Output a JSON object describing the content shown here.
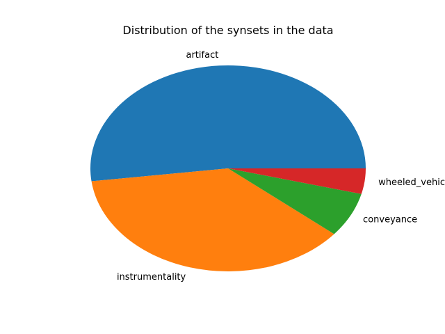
{
  "chart_data": {
    "type": "pie",
    "title": "Distribution of the synsets in the data",
    "categories": [
      "artifact",
      "instrumentality",
      "conveyance",
      "wheeled_vehicle"
    ],
    "values": [
      52,
      37,
      7,
      4
    ],
    "colors": [
      "#1f77b4",
      "#ff7f0e",
      "#2ca02c",
      "#d62728"
    ],
    "start_angle_deg": 0,
    "direction": "counterclockwise",
    "legend": "none"
  }
}
